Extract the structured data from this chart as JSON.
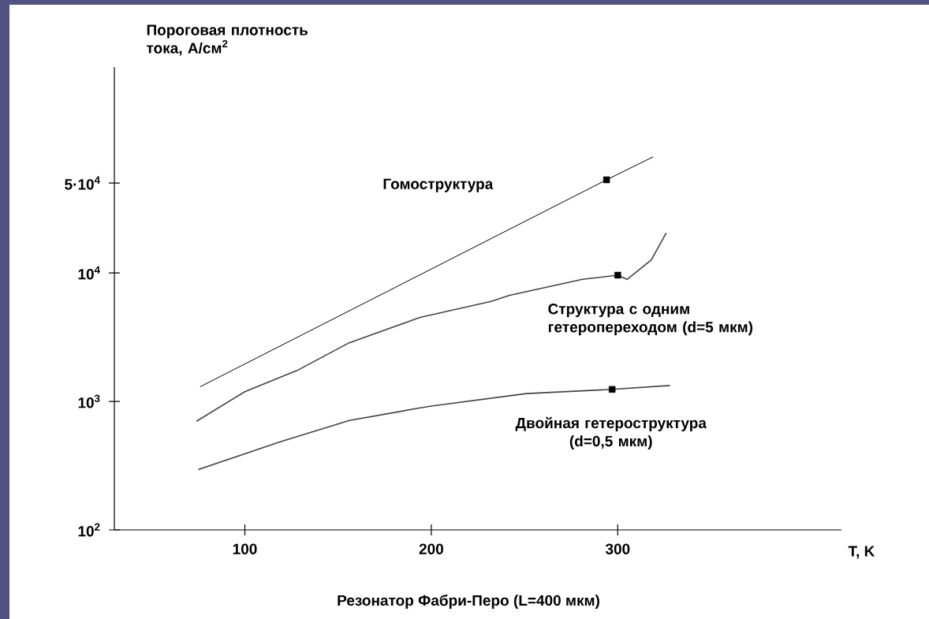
{
  "chart_data": {
    "type": "line",
    "ylabel": "Пороговая плотность тока, А/см$^{2}$",
    "xlabel": "T, K",
    "annotations": [
      "Резонатор Фабри-Перо (L=400 мкм)"
    ],
    "log": "y",
    "xlim": [
      30,
      420
    ],
    "xticks": [
      100,
      200,
      300
    ],
    "ylim": [
      100,
      400000
    ],
    "yticks": [
      {
        "value": 100,
        "label": "10$^{2}$"
      },
      {
        "value": 1000,
        "label": "10$^{3}$"
      },
      {
        "value": 10000,
        "label": "10$^{4}$"
      },
      {
        "value": 50000,
        "label": "5·10$^{4}$"
      }
    ],
    "series": [
      {
        "name": "Гомоструктура",
        "color": "#000000",
        "x": [
          76,
          294,
          319
        ],
        "values": [
          1300,
          53000,
          80000
        ]
      },
      {
        "name": "Структура с одним гетеропереходом (d=5 мкм)",
        "color": "#444444",
        "x": [
          74,
          100,
          128,
          156,
          194,
          232,
          242,
          281,
          300,
          305,
          318,
          326
        ],
        "values": [
          700,
          1190,
          1740,
          2860,
          4500,
          6000,
          6700,
          8900,
          9600,
          8900,
          12600,
          20500
        ]
      },
      {
        "name": "Двойная гетероструктура (d=0,5 мкм)",
        "color": "#444444",
        "x": [
          75,
          119,
          156,
          194,
          200,
          251,
          297,
          328
        ],
        "values": [
          295,
          485,
          710,
          890,
          920,
          1150,
          1240,
          1330
        ]
      },
      {
        "type": "scatter",
        "marker": "square",
        "color": "#000000",
        "x": [
          294,
          300,
          297
        ],
        "values": [
          53000,
          9600,
          1240
        ]
      }
    ]
  }
}
